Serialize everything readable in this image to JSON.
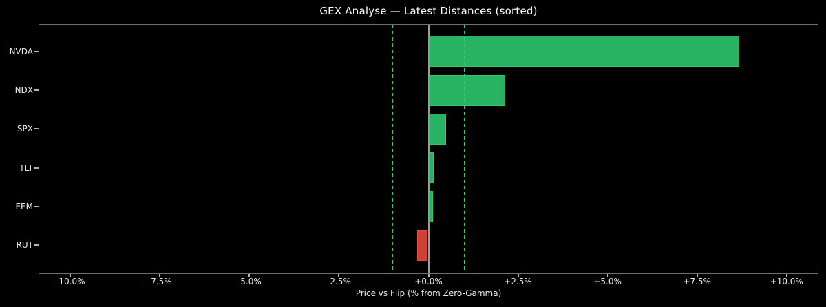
{
  "chart_data": {
    "type": "bar",
    "orientation": "horizontal",
    "title": "GEX Analyse — Latest Distances (sorted)",
    "xlabel": "Price vs Flip (% from Zero-Gamma)",
    "unit": "%",
    "categories": [
      "NVDA",
      "NDX",
      "SPX",
      "TLT",
      "EEM",
      "RUT"
    ],
    "values": [
      8.7,
      2.17,
      0.5,
      0.16,
      0.14,
      -0.32
    ],
    "xlim": [
      -10.87,
      10.87
    ],
    "xticks": [
      -10,
      -7.5,
      -5,
      -2.5,
      0,
      2.5,
      5,
      7.5,
      10
    ],
    "xtick_labels": [
      "-10.0%",
      "-7.5%",
      "-5.0%",
      "-2.5%",
      "+0.0%",
      "+2.5%",
      "+5.0%",
      "+7.5%",
      "+10.0%"
    ],
    "reference_lines": {
      "zero_line_at": 0,
      "dashed_lines_at": [
        -1,
        1
      ]
    },
    "grid": false,
    "legend": false,
    "colors": {
      "positive_bar": "#2ecc71",
      "negative_bar": "#e74c3c",
      "bar_fill_alpha": 0.88,
      "dashed_line": "#2ecc71",
      "zero_line": "#9e9e9e",
      "background": "#000000",
      "text": "#ffffff"
    }
  }
}
